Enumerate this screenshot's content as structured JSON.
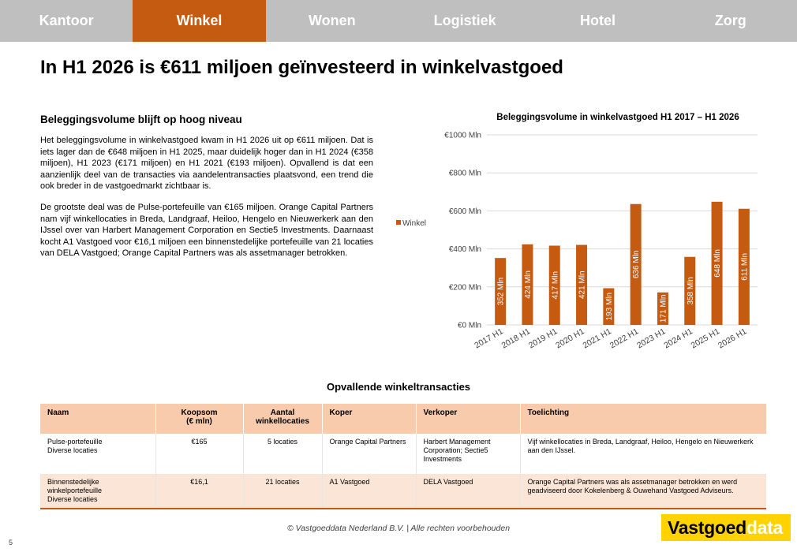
{
  "nav": {
    "tabs": [
      {
        "label": "Kantoor"
      },
      {
        "label": "Winkel"
      },
      {
        "label": "Wonen"
      },
      {
        "label": "Logistiek"
      },
      {
        "label": "Hotel"
      },
      {
        "label": "Zorg"
      }
    ],
    "active_index": 1
  },
  "page": {
    "title": "In H1 2026 is €611 miljoen geïnvesteerd in winkelvastgoed",
    "page_number": "5"
  },
  "text_section": {
    "heading": "Beleggingsvolume blijft op hoog niveau",
    "paragraph_1": "Het beleggingsvolume in winkelvastgoed kwam in H1 2026 uit op €611 miljoen. Dat is iets lager dan de €648 miljoen in H1 2025, maar duidelijk hoger dan in H1 2024 (€358 miljoen), H1 2023 (€171 miljoen) en H1 2021 (€193 miljoen). Opvallend is dat een aanzienlijk deel van de transacties via aandelentransacties plaatsvond, een trend die ook breder in de vastgoedmarkt zichtbaar is.",
    "paragraph_2": "De grootste deal was de Pulse-portefeuille van €165 miljoen. Orange Capital Partners nam vijf winkellocaties in Breda, Landgraaf, Heiloo, Hengelo en Nieuwerkerk aan den IJssel over van Harbert Management Corporation en Sectie5 Investments. Daarnaast kocht A1 Vastgoed voor €16,1 miljoen een binnenstedelijke portefeuille van 21 locaties van DELA Vastgoed; Orange Capital Partners was als assetmanager betrokken."
  },
  "chart_data": {
    "type": "bar",
    "title": "Beleggingsvolume in winkelvastgoed H1 2017 – H1 2026",
    "categories": [
      "2017 H1",
      "2018 H1",
      "2019 H1",
      "2020 H1",
      "2021 H1",
      "2022 H1",
      "2023 H1",
      "2024 H1",
      "2025 H1",
      "2026 H1"
    ],
    "series": [
      {
        "name": "Winkel",
        "values": [
          352,
          424,
          417,
          421,
          193,
          636,
          171,
          358,
          648,
          611
        ],
        "color": "#c55a11"
      }
    ],
    "data_labels": [
      "352 Mln",
      "424 Mln",
      "417 Mln",
      "421 Mln",
      "193 Mln",
      "636 Mln",
      "171 Mln",
      "358 Mln",
      "648 Mln",
      "611 Mln"
    ],
    "ylim": [
      0,
      1000
    ],
    "yticks": [
      0,
      200,
      400,
      600,
      800,
      1000
    ],
    "ytick_labels": [
      "€0 Mln",
      "€200 Mln",
      "€400 Mln",
      "€600 Mln",
      "€800 Mln",
      "€1000 Mln"
    ],
    "xlabel": "",
    "ylabel": "",
    "grid": true,
    "legend": "left"
  },
  "deals_table": {
    "title": "Opvallende winkeltransacties",
    "headers": [
      "Naam",
      "Koopsom\n(€ mln)",
      "Aantal\nwinkellocaties",
      "Koper",
      "Verkoper",
      "Toelichting"
    ],
    "rows": [
      [
        "Pulse-portefeuille\nDiverse locaties",
        "€165",
        "5 locaties",
        "Orange Capital Partners",
        "Harbert Management Corporation; Sectie5 Investments",
        "Vijf winkellocaties in Breda, Landgraaf, Heiloo, Hengelo en Nieuwerkerk aan den IJssel."
      ],
      [
        "Binnenstedelijke winkelportefeuille\nDiverse locaties",
        "€16,1",
        "21 locaties",
        "A1 Vastgoed",
        "DELA Vastgoed",
        "Orange Capital Partners was als assetmanager betrokken en werd geadviseerd door Kokelenberg & Ouwehand Vastgoed Adviseurs."
      ]
    ]
  },
  "footer": {
    "copyright": "© Vastgoeddata Nederland B.V. | Alle rechten voorbehouden",
    "logo_part1": "Vastgoed",
    "logo_part2": "data"
  }
}
